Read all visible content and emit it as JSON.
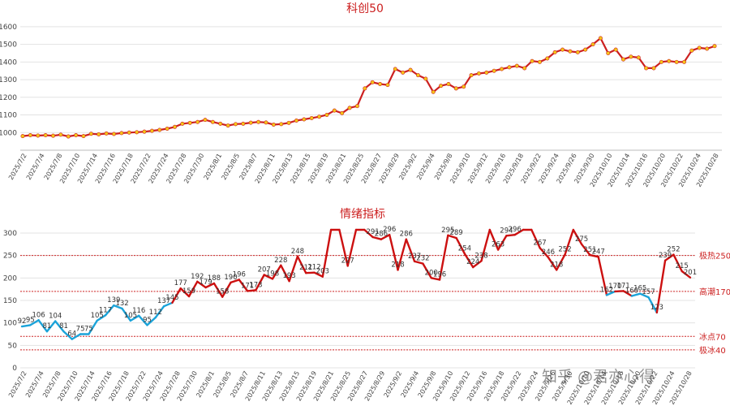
{
  "chart_data": [
    {
      "type": "line",
      "title": "科创50",
      "ylim": [
        900,
        1650
      ],
      "yticks": [
        1000,
        1100,
        1200,
        1300,
        1400,
        1500,
        1600
      ],
      "x_labels": [
        "2025/7/2",
        "2025/7/4",
        "2025/7/8",
        "2025/7/10",
        "2025/7/14",
        "2025/7/16",
        "2025/7/18",
        "2025/7/22",
        "2025/7/24",
        "2025/7/28",
        "2025/7/30",
        "2025/8/1",
        "2025/8/5",
        "2025/8/7",
        "2025/8/11",
        "2025/8/13",
        "2025/8/15",
        "2025/8/19",
        "2025/8/21",
        "2025/8/25",
        "2025/8/27",
        "2025/8/29",
        "2025/9/2",
        "2025/9/4",
        "2025/9/8",
        "2025/9/10",
        "2025/9/12",
        "2025/9/16",
        "2025/9/18",
        "2025/9/22",
        "2025/9/24",
        "2025/9/26",
        "2025/9/30",
        "2025/10/10",
        "2025/10/14",
        "2025/10/16",
        "2025/10/20",
        "2025/10/22",
        "2025/10/24",
        "2025/10/28"
      ],
      "series": [
        {
          "color": "#cc2020",
          "marker_color": "#f5c518",
          "values": [
            980,
            985,
            983,
            985,
            982,
            988,
            978,
            985,
            980,
            993,
            990,
            995,
            992,
            997,
            1000,
            1002,
            1005,
            1010,
            1015,
            1022,
            1032,
            1050,
            1055,
            1060,
            1072,
            1060,
            1050,
            1040,
            1048,
            1050,
            1056,
            1060,
            1057,
            1045,
            1048,
            1055,
            1068,
            1075,
            1082,
            1090,
            1100,
            1125,
            1110,
            1140,
            1150,
            1250,
            1285,
            1275,
            1270,
            1360,
            1340,
            1355,
            1325,
            1305,
            1230,
            1265,
            1275,
            1250,
            1260,
            1325,
            1335,
            1340,
            1350,
            1360,
            1370,
            1378,
            1365,
            1405,
            1400,
            1420,
            1455,
            1470,
            1460,
            1455,
            1470,
            1500,
            1535,
            1450,
            1470,
            1415,
            1430,
            1425,
            1365,
            1365,
            1400,
            1405,
            1400,
            1400,
            1465,
            1480,
            1475,
            1490
          ]
        }
      ]
    },
    {
      "type": "line",
      "title": "情绪指标",
      "ylim": [
        0,
        300
      ],
      "yticks": [
        0,
        50,
        100,
        150,
        200,
        250,
        300
      ],
      "x_labels": [
        "2025/7/2",
        "2025/7/4",
        "2025/7/8",
        "2025/7/10",
        "2025/7/14",
        "2025/7/16",
        "2025/7/18",
        "2025/7/22",
        "2025/7/24",
        "2025/7/28",
        "2025/7/30",
        "2025/8/1",
        "2025/8/5",
        "2025/8/7",
        "2025/8/11",
        "2025/8/13",
        "2025/8/15",
        "2025/8/19",
        "2025/8/21",
        "2025/8/25",
        "2025/8/27",
        "2025/8/29",
        "2025/9/2",
        "2025/9/4",
        "2025/9/8",
        "2025/9/10",
        "2025/9/12",
        "2025/9/16",
        "2025/9/18",
        "2025/9/22",
        "2025/9/24",
        "2025/9/26",
        "2025/9/30",
        "2025/10/10",
        "2025/10/14",
        "2025/10/16",
        "2025/10/20",
        "2025/10/22",
        "2025/10/24",
        "2025/10/28"
      ],
      "series": [
        {
          "low_color": "#1aa3d9",
          "high_color": "#cc1010",
          "color_threshold": 170,
          "values": [
            92,
            95,
            106,
            81,
            104,
            81,
            64,
            75,
            75,
            105,
            117,
            139,
            132,
            105,
            116,
            95,
            112,
            137,
            145,
            177,
            159,
            192,
            179,
            188,
            158,
            190,
            196,
            171,
            173,
            207,
            198,
            228,
            193,
            248,
            211,
            212,
            203,
            320,
            340,
            227,
            330,
            335,
            291,
            286,
            296,
            218,
            286,
            237,
            232,
            200,
            196,
            295,
            289,
            254,
            224,
            238,
            320,
            263,
            294,
            296,
            310,
            320,
            267,
            246,
            218,
            252,
            320,
            275,
            251,
            247,
            162,
            170,
            171,
            160,
            165,
            157,
            123,
            239,
            252,
            215,
            201
          ],
          "labels": [
            "92",
            "95",
            "106",
            "81",
            "104",
            "81",
            "64",
            "75",
            "75",
            "105",
            "117",
            "139",
            "132",
            "105",
            "116",
            "95",
            "112",
            "137",
            "145",
            "177",
            "159",
            "192",
            "179",
            "188",
            "158",
            "190",
            "196",
            "171",
            "173",
            "207",
            "198",
            "228",
            "193",
            "248",
            "211",
            "212",
            "203",
            "",
            "",
            "227",
            "",
            "",
            "291",
            "286",
            "296",
            "218",
            "286",
            "237",
            "232",
            "200",
            "196",
            "295",
            "289",
            "254",
            "224",
            "238",
            "",
            "263",
            "294",
            "296",
            "",
            "",
            "267",
            "246",
            "218",
            "252",
            "",
            "275",
            "251",
            "247",
            "162",
            "170",
            "171",
            "160",
            "165",
            "157",
            "123",
            "239",
            "252",
            "215",
            "201"
          ]
        }
      ],
      "reference_lines": [
        {
          "label": "极热250",
          "value": 250
        },
        {
          "label": "高潮170",
          "value": 170
        },
        {
          "label": "冰点70",
          "value": 70
        },
        {
          "label": "极冰40",
          "value": 40
        }
      ]
    }
  ],
  "watermark": "知乎 @君亦心得",
  "colors": {
    "title": "#cc2020",
    "grid": "#e3e3e3",
    "ref_line": "#cc2020"
  }
}
